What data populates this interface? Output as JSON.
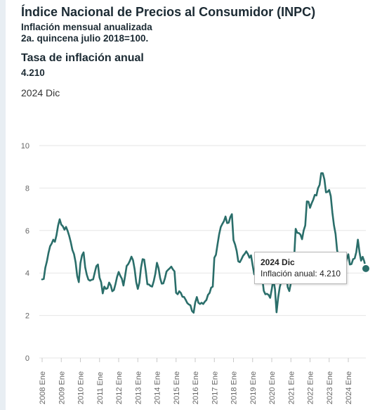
{
  "header": {
    "title": "Índice Nacional de Precios al Consumidor (INPC)",
    "subtitle_line1": "Inflación mensual anualizada",
    "subtitle_line2": "2a. quincena julio 2018=100.",
    "rate_title": "Tasa de inflación anual",
    "rate_value": "4.210",
    "rate_period": "2024 Dic"
  },
  "tooltip": {
    "period": "2024 Dic",
    "label": "Inflación anual:",
    "value": "4.210"
  },
  "colors": {
    "line": "#2a6e6a",
    "grid": "#e6e6e6",
    "axis_text": "#666666",
    "text": "#1b2a33"
  },
  "chart_data": {
    "type": "line",
    "title": "Tasa de inflación anual",
    "ylim": [
      0,
      10
    ],
    "yticks": [
      0,
      2,
      4,
      6,
      8,
      10
    ],
    "xticks": [
      "2008 Ene",
      "2009 Ene",
      "2010 Ene",
      "2011 Ene",
      "2012 Ene",
      "2013 Ene",
      "2014 Ene",
      "2015 Ene",
      "2016 Ene",
      "2017 Ene",
      "2018 Ene",
      "2019 Ene",
      "2020 Ene",
      "2021 Ene",
      "2022 Ene",
      "2023 Ene",
      "2024 Ene"
    ],
    "x_start": "2008-01",
    "x_end": "2024-12",
    "grid": true,
    "legend": "none",
    "series": [
      {
        "values": [
          3.7,
          3.72,
          4.25,
          4.55,
          4.95,
          5.26,
          5.39,
          5.57,
          5.47,
          5.78,
          6.23,
          6.53,
          6.28,
          6.2,
          6.04,
          6.17,
          5.98,
          5.74,
          5.44,
          5.08,
          4.89,
          4.5,
          3.86,
          3.57,
          4.46,
          4.83,
          4.97,
          4.27,
          3.92,
          3.69,
          3.64,
          3.68,
          3.7,
          4.02,
          4.32,
          4.4,
          3.78,
          3.57,
          3.04,
          3.36,
          3.25,
          3.28,
          3.55,
          3.42,
          3.14,
          3.2,
          3.48,
          3.82,
          4.05,
          3.87,
          3.73,
          3.41,
          3.85,
          4.33,
          4.42,
          4.57,
          4.77,
          4.6,
          4.18,
          3.57,
          3.25,
          3.55,
          4.25,
          4.65,
          4.63,
          4.09,
          3.47,
          3.46,
          3.39,
          3.36,
          3.62,
          3.97,
          4.48,
          4.23,
          3.76,
          3.5,
          3.51,
          3.75,
          4.07,
          4.15,
          4.22,
          4.3,
          4.17,
          4.08,
          3.07,
          3.0,
          3.14,
          3.06,
          2.88,
          2.87,
          2.74,
          2.59,
          2.52,
          2.48,
          2.21,
          2.13,
          2.61,
          2.87,
          2.6,
          2.54,
          2.6,
          2.54,
          2.65,
          2.73,
          2.97,
          3.06,
          3.31,
          3.36,
          4.72,
          4.86,
          5.35,
          5.82,
          6.16,
          6.31,
          6.44,
          6.66,
          6.35,
          6.37,
          6.63,
          6.77,
          5.55,
          5.34,
          5.04,
          4.55,
          4.51,
          4.65,
          4.81,
          4.9,
          5.02,
          4.9,
          4.72,
          4.83,
          4.37,
          3.94,
          4.0,
          4.41,
          4.28,
          3.95,
          3.78,
          3.16,
          3.0,
          3.02,
          2.97,
          2.83,
          3.24,
          3.7,
          3.25,
          2.15,
          2.84,
          3.33,
          3.62,
          4.05,
          4.01,
          4.09,
          3.33,
          3.15,
          3.54,
          3.76,
          4.67,
          6.08,
          5.89,
          5.88,
          5.81,
          5.59,
          6.0,
          6.24,
          7.37,
          7.36,
          7.07,
          7.28,
          7.45,
          7.68,
          7.65,
          7.99,
          8.15,
          8.7,
          8.7,
          8.41,
          7.8,
          7.82,
          7.91,
          7.62,
          6.85,
          6.25,
          5.84,
          5.06,
          4.79,
          4.64,
          4.45,
          4.26,
          4.32,
          4.66,
          4.88,
          4.4,
          4.42,
          4.65,
          4.69,
          4.98,
          5.57,
          4.99,
          4.58,
          4.76,
          4.55,
          4.21
        ]
      }
    ]
  }
}
